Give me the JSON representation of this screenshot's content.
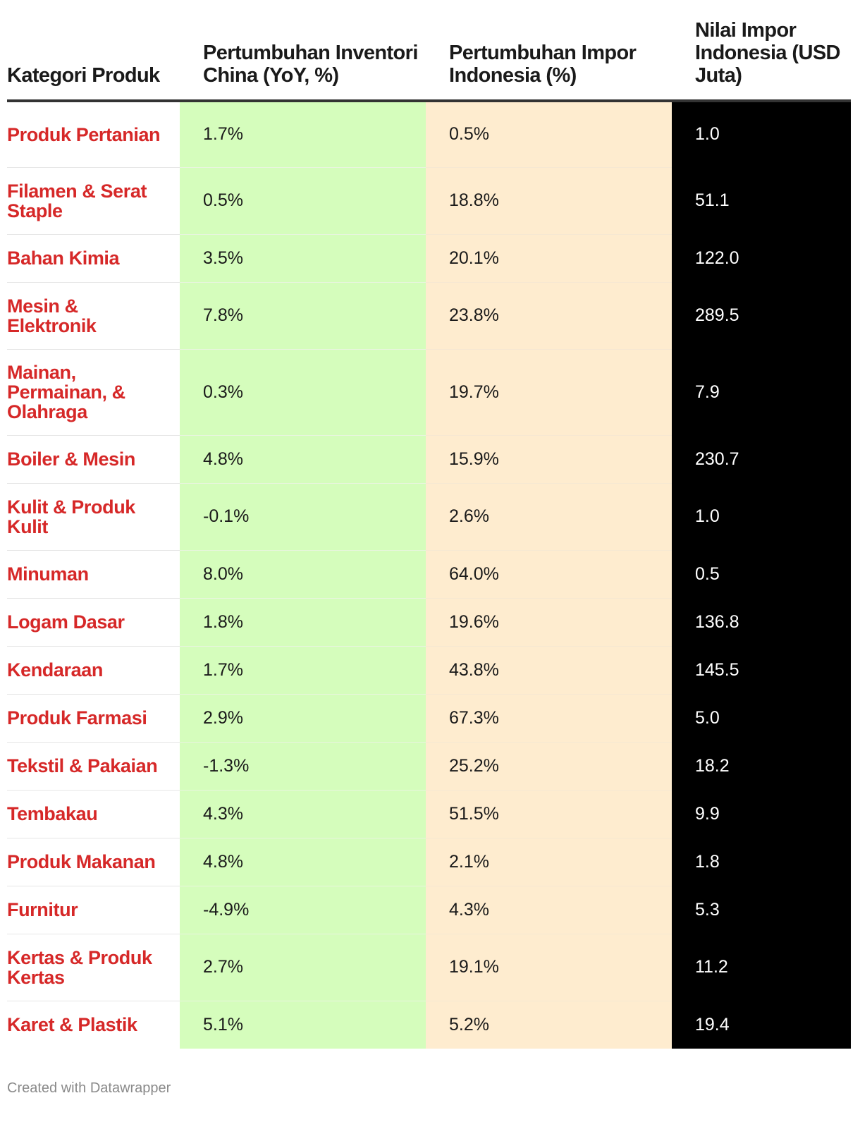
{
  "colors": {
    "category_text": "#d62828",
    "col2_bg": "#d5fdbc",
    "col3_bg": "#feeccf",
    "col4_bg": "#000000",
    "col4_text": "#ffffff"
  },
  "chart_data": {
    "type": "table",
    "columns": [
      "Kategori Produk",
      "Pertumbuhan Inventori China (YoY, %)",
      "Pertumbuhan Impor Indonesia (%)",
      "Nilai Impor Indonesia (USD Juta)"
    ],
    "rows": [
      [
        "Produk Pertanian",
        "1.7%",
        "0.5%",
        "1.0"
      ],
      [
        "Filamen & Serat Staple",
        "0.5%",
        "18.8%",
        "51.1"
      ],
      [
        "Bahan Kimia",
        "3.5%",
        "20.1%",
        "122.0"
      ],
      [
        "Mesin & Elektronik",
        "7.8%",
        "23.8%",
        "289.5"
      ],
      [
        "Mainan, Permainan, & Olahraga",
        "0.3%",
        "19.7%",
        "7.9"
      ],
      [
        "Boiler & Mesin",
        "4.8%",
        "15.9%",
        "230.7"
      ],
      [
        "Kulit & Produk Kulit",
        "-0.1%",
        "2.6%",
        "1.0"
      ],
      [
        "Minuman",
        "8.0%",
        "64.0%",
        "0.5"
      ],
      [
        "Logam Dasar",
        "1.8%",
        "19.6%",
        "136.8"
      ],
      [
        "Kendaraan",
        "1.7%",
        "43.8%",
        "145.5"
      ],
      [
        "Produk Farmasi",
        "2.9%",
        "67.3%",
        "5.0"
      ],
      [
        "Tekstil & Pakaian",
        "-1.3%",
        "25.2%",
        "18.2"
      ],
      [
        "Tembakau",
        "4.3%",
        "51.5%",
        "9.9"
      ],
      [
        "Produk Makanan",
        "4.8%",
        "2.1%",
        "1.8"
      ],
      [
        "Furnitur",
        "-4.9%",
        "4.3%",
        "5.3"
      ],
      [
        "Kertas & Produk Kertas",
        "2.7%",
        "19.1%",
        "11.2"
      ],
      [
        "Karet & Plastik",
        "5.1%",
        "5.2%",
        "19.4"
      ]
    ]
  },
  "footer": "Created with Datawrapper"
}
